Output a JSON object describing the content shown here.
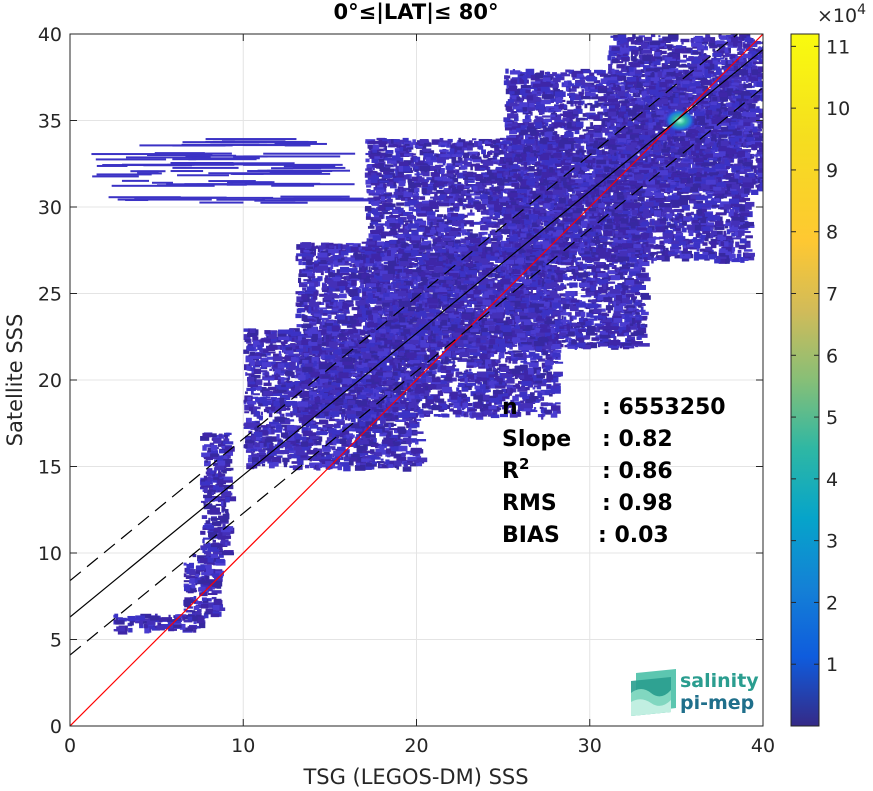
{
  "chart_data": {
    "type": "heatmap",
    "title": "0°≤|LAT|≤ 80°",
    "xlabel": "TSG (LEGOS-DM) SSS",
    "ylabel": "Satellite SSS",
    "xlim": [
      0,
      40
    ],
    "ylim": [
      0,
      40
    ],
    "xticks": [
      "0",
      "10",
      "20",
      "30",
      "40"
    ],
    "yticks": [
      "0",
      "5",
      "10",
      "15",
      "20",
      "25",
      "30",
      "35",
      "40"
    ],
    "grid": true,
    "colorbar": {
      "colormap": "parula",
      "range": [
        0,
        112000
      ],
      "exponent_label": "×10",
      "exponent_power": "4",
      "ticks": [
        "1",
        "2",
        "3",
        "4",
        "5",
        "6",
        "7",
        "8",
        "9",
        "10",
        "11"
      ]
    },
    "lines": [
      {
        "name": "identity",
        "slope": 1.0,
        "intercept": 0.0,
        "color": "#ff0000",
        "style": "solid"
      },
      {
        "name": "regression",
        "slope": 0.82,
        "intercept": 6.3,
        "color": "#000000",
        "style": "solid"
      },
      {
        "name": "regression-upper",
        "slope": 0.82,
        "intercept": 8.4,
        "color": "#000000",
        "style": "dashed"
      },
      {
        "name": "regression-lower",
        "slope": 0.82,
        "intercept": 4.1,
        "color": "#000000",
        "style": "dashed"
      }
    ],
    "stats": [
      {
        "label": "n",
        "value": ": 6553250"
      },
      {
        "label": "Slope",
        "value": ": 0.82"
      },
      {
        "label": "R",
        "label_sup": "2",
        "value": ": 0.86"
      },
      {
        "label": "RMS",
        "value": ": 0.98"
      },
      {
        "label": "BIAS",
        "value": ": 0.03"
      }
    ],
    "density_regions": [
      {
        "x": [
          2.5,
          7.5
        ],
        "y": [
          5.6,
          6.5
        ]
      },
      {
        "x": [
          6.5,
          8.5
        ],
        "y": [
          6.5,
          10
        ]
      },
      {
        "x": [
          7.5,
          9
        ],
        "y": [
          10,
          17
        ]
      },
      {
        "x": [
          10,
          20
        ],
        "y": [
          15,
          23
        ]
      },
      {
        "x": [
          13,
          28
        ],
        "y": [
          18,
          28
        ]
      },
      {
        "x": [
          17,
          33
        ],
        "y": [
          22,
          34
        ]
      },
      {
        "x": [
          25,
          39
        ],
        "y": [
          27,
          38
        ]
      },
      {
        "x": [
          31,
          40
        ],
        "y": [
          31,
          40
        ]
      }
    ],
    "hotspot": {
      "x": 35.2,
      "y": 35.0
    }
  },
  "logo": {
    "line1": "salinity",
    "line2": "pi-mep"
  }
}
